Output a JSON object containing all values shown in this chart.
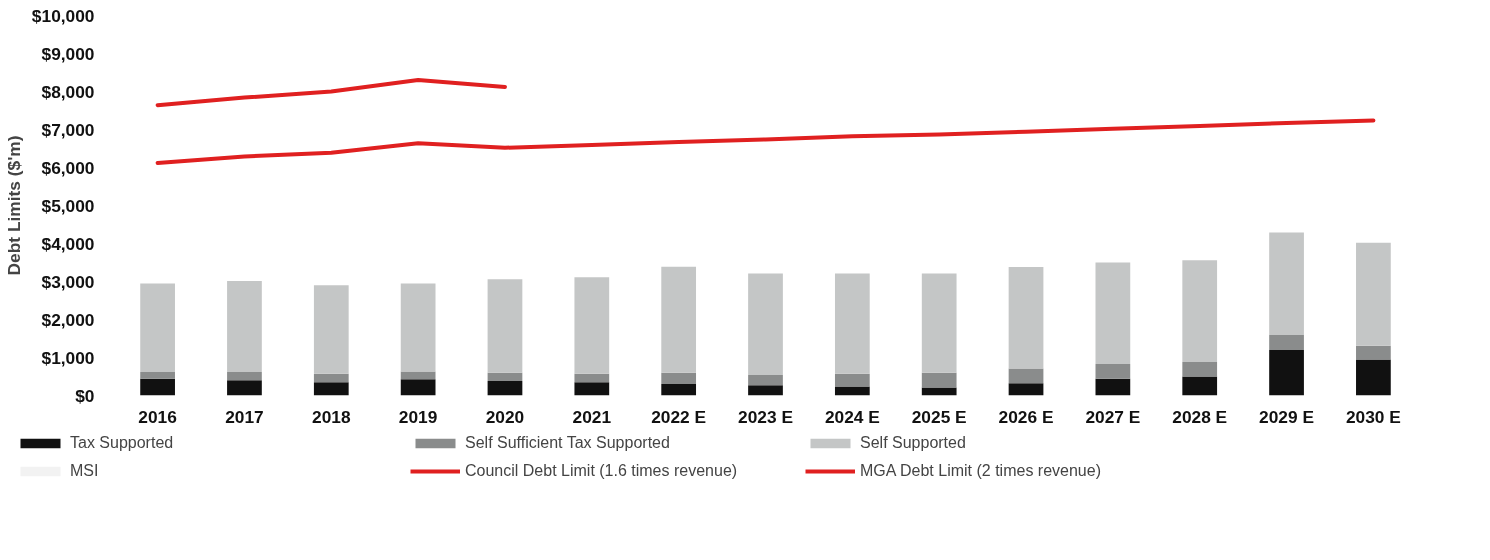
{
  "chart_data": {
    "type": "bar",
    "stacked": true,
    "ylabel": "Debt Limits ($'m)",
    "categories": [
      "2016",
      "2017",
      "2018",
      "2019",
      "2020",
      "2021",
      "2022 E",
      "2023 E",
      "2024 E",
      "2025 E",
      "2026 E",
      "2027 E",
      "2028 E",
      "2029 E",
      "2030 E"
    ],
    "ylim": [
      0,
      10000
    ],
    "yticks": [
      {
        "value": 0,
        "label": "$0"
      },
      {
        "value": 1000,
        "label": "$1,000"
      },
      {
        "value": 2000,
        "label": "$2,000"
      },
      {
        "value": 3000,
        "label": "$3,000"
      },
      {
        "value": 4000,
        "label": "$4,000"
      },
      {
        "value": 5000,
        "label": "$5,000"
      },
      {
        "value": 6000,
        "label": "$6,000"
      },
      {
        "value": 7000,
        "label": "$7,000"
      },
      {
        "value": 8000,
        "label": "$8,000"
      },
      {
        "value": 9000,
        "label": "$9,000"
      },
      {
        "value": 10000,
        "label": "$10,000"
      }
    ],
    "legend": "bottom",
    "grid": false,
    "series": [
      {
        "name": "Tax Supported",
        "type": "bar",
        "color": "#111111",
        "values": [
          440,
          400,
          350,
          430,
          380,
          350,
          300,
          270,
          240,
          210,
          320,
          440,
          500,
          1200,
          950
        ]
      },
      {
        "name": "Self Sufficient Tax Supported",
        "type": "bar",
        "color": "#8a8c8c",
        "values": [
          180,
          220,
          220,
          200,
          220,
          220,
          300,
          270,
          330,
          390,
          390,
          390,
          380,
          390,
          360
        ]
      },
      {
        "name": "Self Supported",
        "type": "bar",
        "color": "#c4c6c6",
        "values": [
          2330,
          2390,
          2330,
          2320,
          2460,
          2540,
          2790,
          2670,
          2640,
          2610,
          2670,
          2670,
          2680,
          2700,
          2710
        ]
      },
      {
        "name": "MSI",
        "type": "bar",
        "color": "#f2f2f2",
        "values": [
          null,
          null,
          null,
          null,
          null,
          null,
          null,
          null,
          null,
          null,
          null,
          null,
          null,
          null,
          null
        ]
      },
      {
        "name": "Council Debt Limit (1.6 times revenue)",
        "type": "line",
        "color": "#e02020",
        "values": [
          6120,
          6290,
          6390,
          6640,
          6520,
          6590,
          6670,
          6740,
          6820,
          6870,
          6940,
          7020,
          7090,
          7170,
          7240
        ]
      },
      {
        "name": "MGA Debt Limit (2 times revenue)",
        "type": "line",
        "color": "#e02020",
        "values": [
          7640,
          7840,
          8000,
          8300,
          8120,
          null,
          null,
          null,
          null,
          null,
          null,
          null,
          null,
          null,
          null
        ]
      }
    ]
  }
}
